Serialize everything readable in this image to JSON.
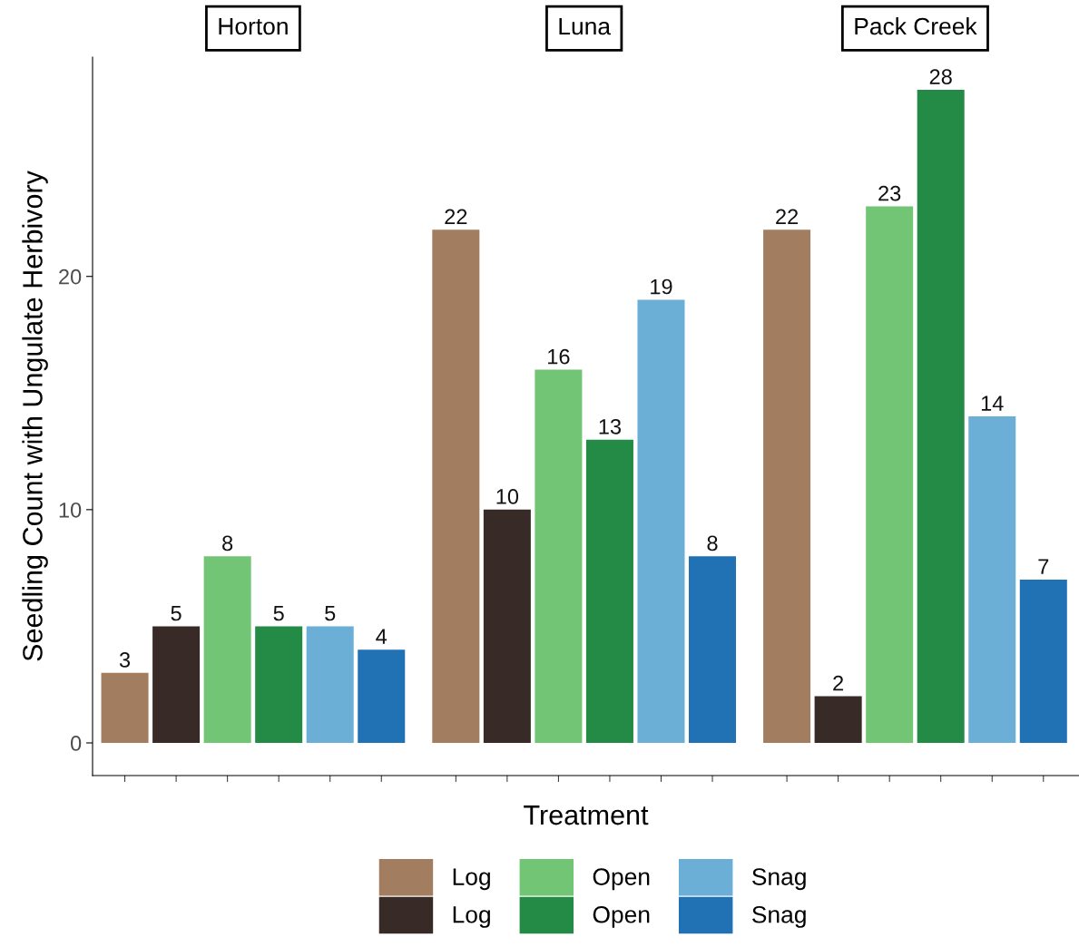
{
  "chart_data": {
    "type": "bar",
    "xlabel": "Treatment",
    "ylabel": "Seedling Count with Ungulate Herbivory",
    "categories": [
      "Horton",
      "Luna",
      "Pack Creek"
    ],
    "ylim": [
      -1.4,
      29.4
    ],
    "yticks": [
      0,
      10,
      20
    ],
    "data_labels": true,
    "grid": false,
    "legend": "bottom",
    "series": [
      {
        "name": "Log",
        "color": "#a27d5f",
        "values": [
          3,
          22,
          22
        ]
      },
      {
        "name": "Log",
        "color": "#372a27",
        "values": [
          5,
          10,
          2
        ]
      },
      {
        "name": "Open",
        "color": "#72c575",
        "values": [
          8,
          16,
          23
        ]
      },
      {
        "name": "Open",
        "color": "#238b45",
        "values": [
          5,
          13,
          28
        ]
      },
      {
        "name": "Snag",
        "color": "#6baed6",
        "values": [
          5,
          19,
          14
        ]
      },
      {
        "name": "Snag",
        "color": "#2171b5",
        "values": [
          4,
          8,
          7
        ]
      }
    ]
  }
}
